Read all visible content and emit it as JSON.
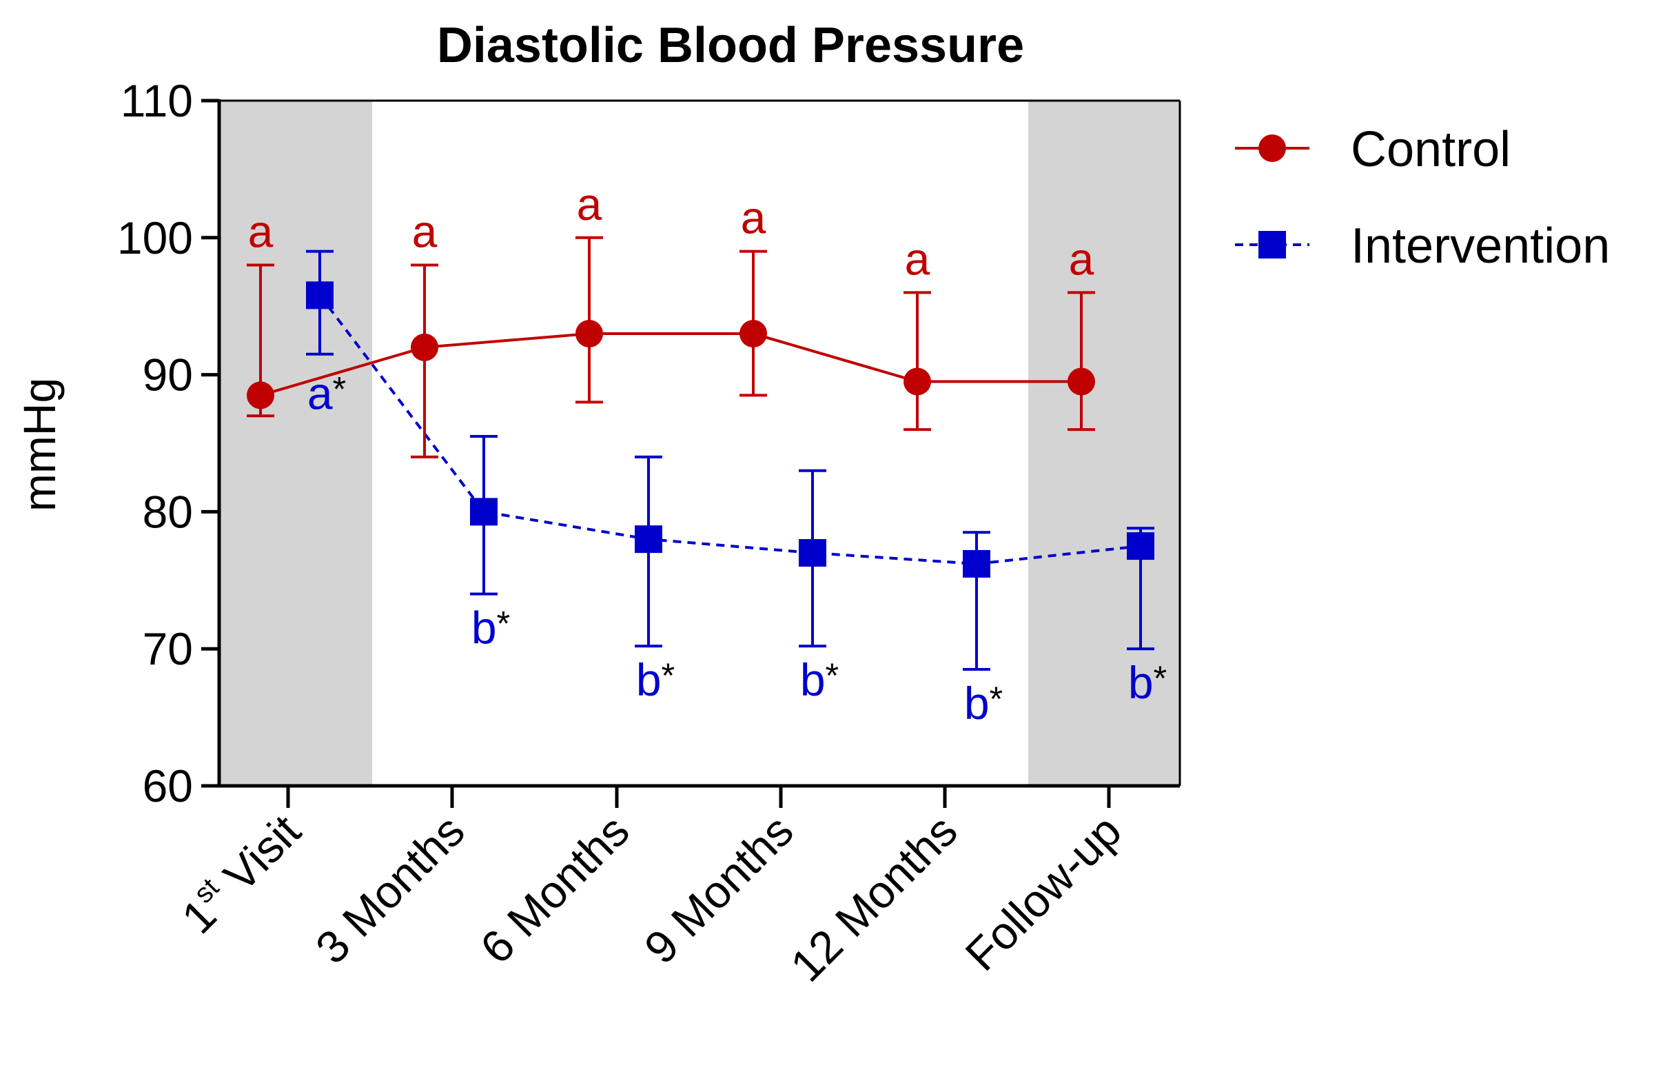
{
  "chart_data": {
    "type": "line",
    "title": "Diastolic Blood Pressure",
    "xlabel": "",
    "ylabel": "mmHg",
    "ylim": [
      60,
      110
    ],
    "yticks": [
      60,
      70,
      80,
      90,
      100,
      110
    ],
    "categories": [
      {
        "main": "1",
        "sup": "st",
        "rest": " Visit"
      },
      {
        "main": "3 Months",
        "sup": "",
        "rest": ""
      },
      {
        "main": "6 Months",
        "sup": "",
        "rest": ""
      },
      {
        "main": "9 Months",
        "sup": "",
        "rest": ""
      },
      {
        "main": "12 Months",
        "sup": "",
        "rest": ""
      },
      {
        "main": "Follow-up",
        "sup": "",
        "rest": ""
      }
    ],
    "shaded_categories": [
      0,
      5
    ],
    "legend_position": "top-right",
    "series": [
      {
        "name": "Control",
        "color": "#c00000",
        "marker": "circle",
        "line_style": "solid",
        "values": [
          88.5,
          92.0,
          93.0,
          93.0,
          89.5,
          89.5
        ],
        "error_low": [
          87.0,
          84.0,
          88.0,
          88.5,
          86.0,
          86.0
        ],
        "error_high": [
          98.0,
          98.0,
          100.0,
          99.0,
          96.0,
          96.0
        ],
        "annotations": [
          {
            "letter": "a",
            "star": ""
          },
          {
            "letter": "a",
            "star": ""
          },
          {
            "letter": "a",
            "star": ""
          },
          {
            "letter": "a",
            "star": ""
          },
          {
            "letter": "a",
            "star": ""
          },
          {
            "letter": "a",
            "star": ""
          }
        ]
      },
      {
        "name": "Intervention",
        "color": "#0000cc",
        "marker": "square",
        "line_style": "dashed",
        "values": [
          95.8,
          80.0,
          78.0,
          77.0,
          76.2,
          77.5
        ],
        "error_low": [
          91.5,
          74.0,
          70.2,
          70.2,
          68.5,
          70.0
        ],
        "error_high": [
          99.0,
          85.5,
          84.0,
          83.0,
          78.5,
          78.8
        ],
        "annotations": [
          {
            "letter": "a",
            "star": "*"
          },
          {
            "letter": "b",
            "star": "*"
          },
          {
            "letter": "b",
            "star": "*"
          },
          {
            "letter": "b",
            "star": "*"
          },
          {
            "letter": "b",
            "star": "*"
          },
          {
            "letter": "b",
            "star": "*"
          }
        ]
      }
    ]
  }
}
